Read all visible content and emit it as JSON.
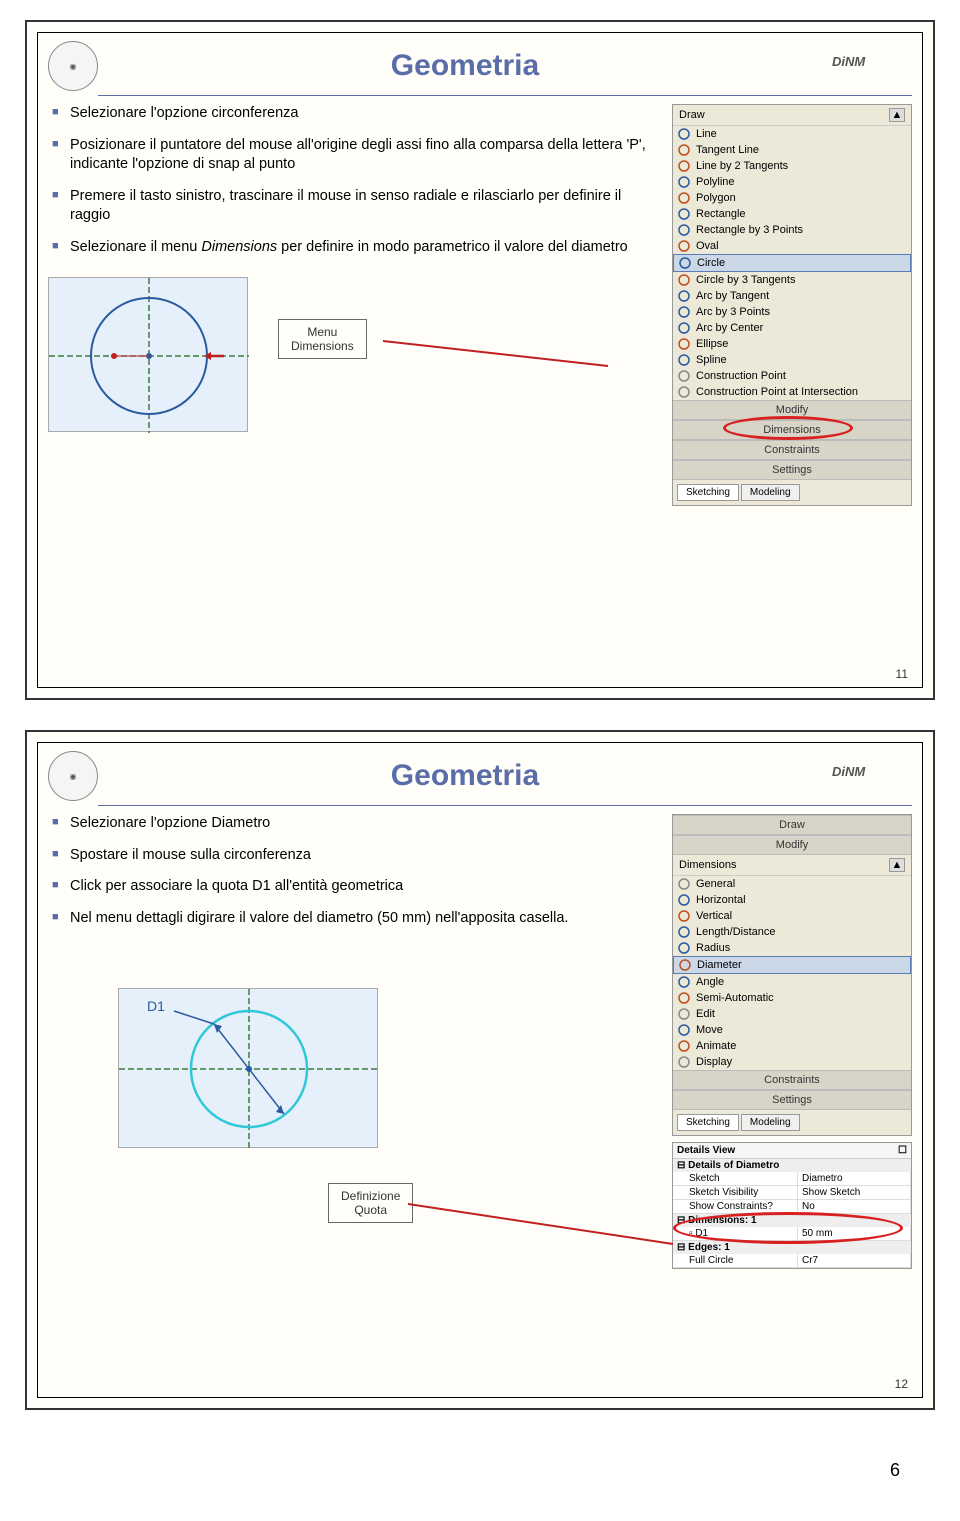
{
  "pageNumber": "6",
  "slide1": {
    "title": "Geometria",
    "logoRight": "DiNM",
    "slideNum": "11",
    "bullets": [
      "Selezionare l'opzione circonferenza",
      "Posizionare il puntatore del mouse all'origine degli assi fino alla comparsa della lettera 'P', indicante l'opzione di snap al punto",
      "Premere il tasto sinistro, trascinare il mouse in senso radiale e rilasciarlo per definire il raggio",
      "Selezionare il menu Dimensions per definire in modo parametrico il valore del diametro"
    ],
    "italicWord": "Dimensions",
    "callout": "Menu\nDimensions",
    "panel": {
      "header": "Draw",
      "items": [
        {
          "label": "Line",
          "color": "#2a5aa0"
        },
        {
          "label": "Tangent Line",
          "color": "#c05020"
        },
        {
          "label": "Line by 2 Tangents",
          "color": "#c05020"
        },
        {
          "label": "Polyline",
          "color": "#2a5aa0"
        },
        {
          "label": "Polygon",
          "color": "#c05020"
        },
        {
          "label": "Rectangle",
          "color": "#2a5aa0"
        },
        {
          "label": "Rectangle by 3 Points",
          "color": "#2a5aa0"
        },
        {
          "label": "Oval",
          "color": "#c05020"
        },
        {
          "label": "Circle",
          "color": "#2a5aa0",
          "selected": true
        },
        {
          "label": "Circle by 3 Tangents",
          "color": "#c05020"
        },
        {
          "label": "Arc by Tangent",
          "color": "#2a5aa0"
        },
        {
          "label": "Arc by 3 Points",
          "color": "#2a5aa0"
        },
        {
          "label": "Arc by Center",
          "color": "#2a5aa0"
        },
        {
          "label": "Ellipse",
          "color": "#c05020"
        },
        {
          "label": "Spline",
          "color": "#2a5aa0"
        },
        {
          "label": "Construction Point",
          "color": "#888"
        },
        {
          "label": "Construction Point at Intersection",
          "color": "#888"
        }
      ],
      "sections": [
        "Modify",
        "Dimensions",
        "Constraints",
        "Settings"
      ],
      "highlighted": "Dimensions",
      "tabs": [
        "Sketching",
        "Modeling"
      ]
    }
  },
  "slide2": {
    "title": "Geometria",
    "logoRight": "DiNM",
    "slideNum": "12",
    "bullets": [
      "Selezionare l'opzione Diametro",
      "Spostare il mouse sulla circonferenza",
      "Click per associare la quota D1 all'entità geometrica",
      "Nel menu dettagli digirare il valore del diametro (50 mm) nell'apposita casella."
    ],
    "callout": "Definizione\nQuota",
    "d1Label": "D1",
    "panel": {
      "headers": [
        "Draw",
        "Modify",
        "Dimensions"
      ],
      "items": [
        {
          "label": "General",
          "color": "#888"
        },
        {
          "label": "Horizontal",
          "color": "#2a5aa0"
        },
        {
          "label": "Vertical",
          "color": "#c05020"
        },
        {
          "label": "Length/Distance",
          "color": "#2a5aa0"
        },
        {
          "label": "Radius",
          "color": "#2a5aa0"
        },
        {
          "label": "Diameter",
          "color": "#c05020",
          "selected": true
        },
        {
          "label": "Angle",
          "color": "#2a5aa0"
        },
        {
          "label": "Semi-Automatic",
          "color": "#c05020"
        },
        {
          "label": "Edit",
          "color": "#888"
        },
        {
          "label": "Move",
          "color": "#2a5aa0"
        },
        {
          "label": "Animate",
          "color": "#c05020"
        },
        {
          "label": "Display",
          "color": "#888"
        }
      ],
      "sections": [
        "Constraints",
        "Settings"
      ],
      "tabs": [
        "Sketching",
        "Modeling"
      ]
    },
    "details": {
      "title": "Details View",
      "groupTitle": "Details of Diametro",
      "rows": [
        [
          "Sketch",
          "Diametro"
        ],
        [
          "Sketch Visibility",
          "Show Sketch"
        ],
        [
          "Show Constraints?",
          "No"
        ]
      ],
      "dimGroup": "Dimensions: 1",
      "dimRow": [
        "D1",
        "50 mm"
      ],
      "edgeGroup": "Edges: 1",
      "edgeRow": [
        "Full Circle",
        "Cr7"
      ]
    }
  }
}
